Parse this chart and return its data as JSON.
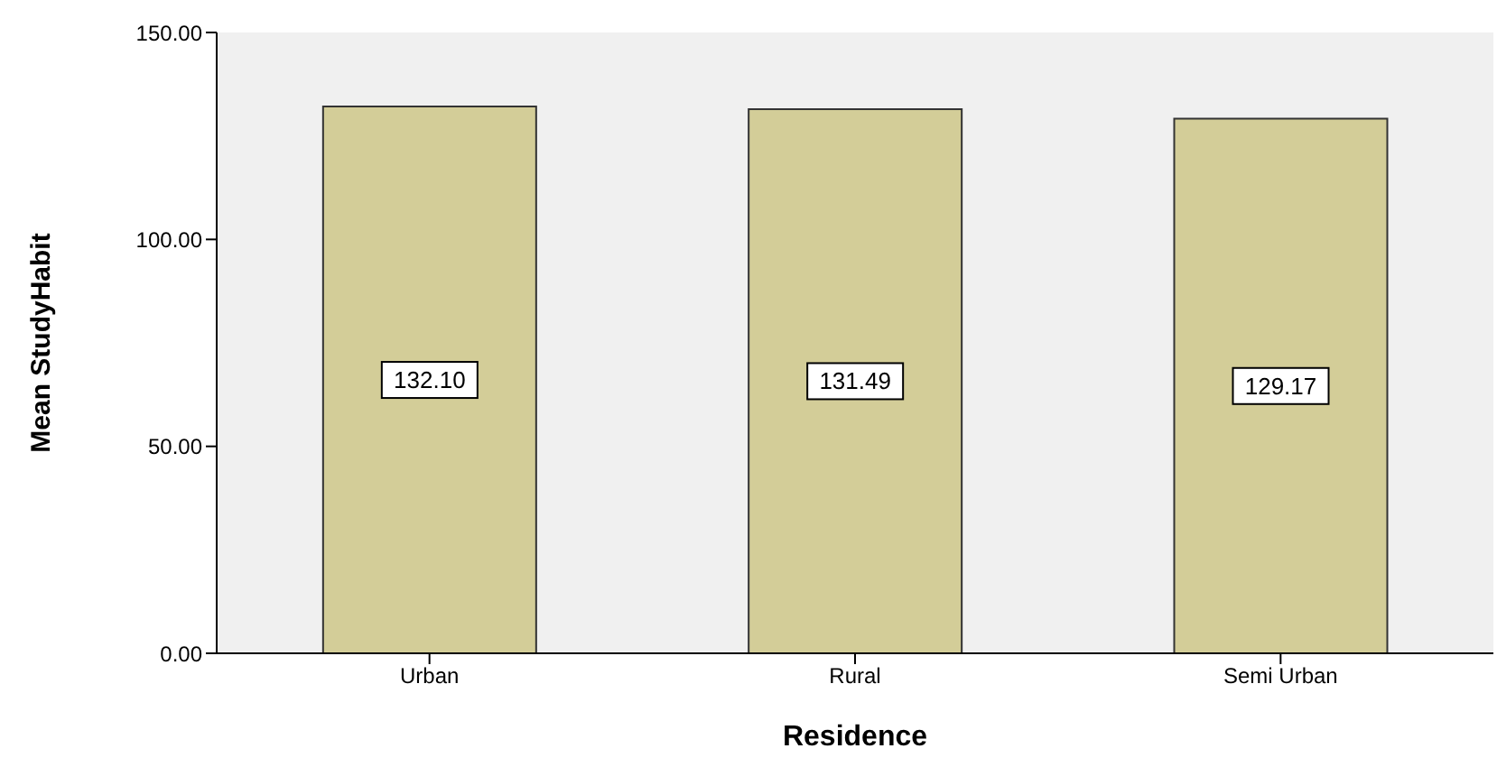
{
  "chart_data": {
    "type": "bar",
    "xlabel": "Residence",
    "ylabel": "Mean StudyHabit",
    "categories": [
      "Urban",
      "Rural",
      "Semi Urban"
    ],
    "values": [
      132.1,
      131.49,
      129.17
    ],
    "value_labels": [
      "132.10",
      "131.49",
      "129.17"
    ],
    "color": "#d3cd98",
    "ylim": [
      0,
      150
    ],
    "yticks": [
      {
        "value": 0,
        "label": "0.00"
      },
      {
        "value": 50,
        "label": "50.00"
      },
      {
        "value": 100,
        "label": "100.00"
      },
      {
        "value": 150,
        "label": "150.00"
      }
    ],
    "grid": false
  }
}
